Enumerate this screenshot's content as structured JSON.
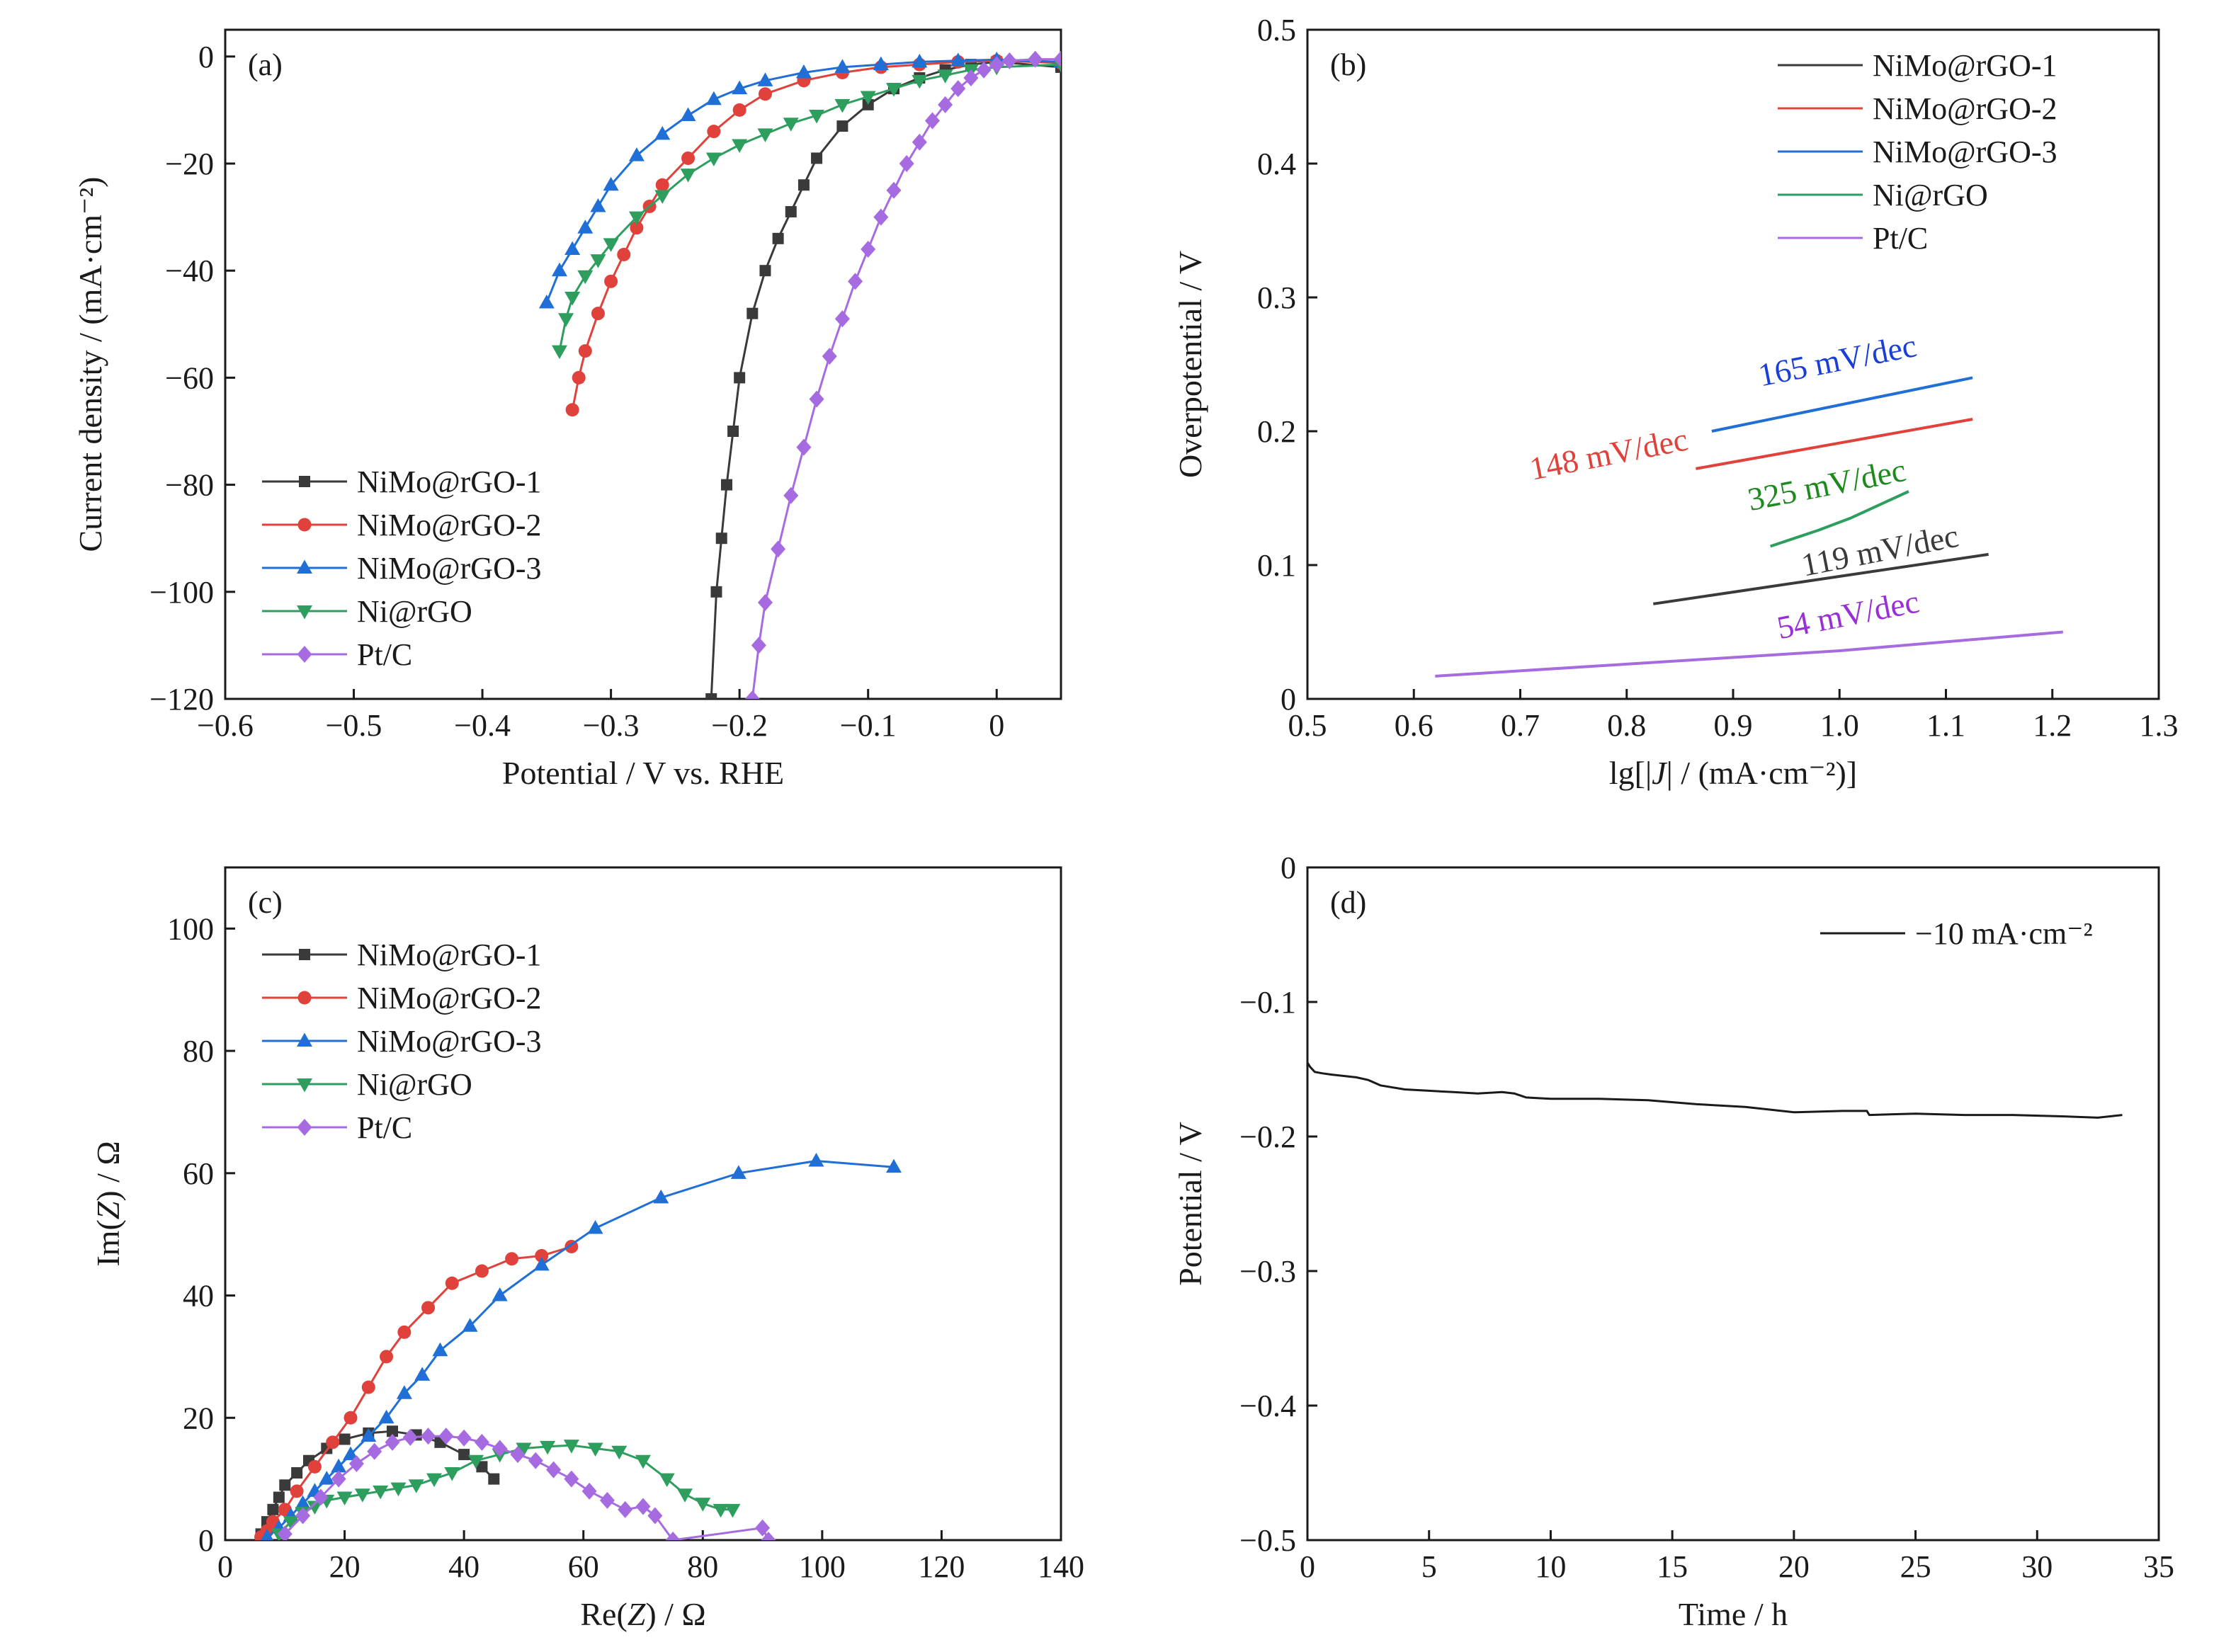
{
  "chart_data": [
    {
      "panel": "(a)",
      "type": "line",
      "xlabel": "Potential / V vs. RHE",
      "ylabel": "Current density / (mA·cm⁻²)",
      "xlim": [
        -0.6,
        0.05
      ],
      "ylim": [
        -120,
        5
      ],
      "xticks": [
        -0.6,
        -0.5,
        -0.4,
        -0.3,
        -0.2,
        -0.1,
        0
      ],
      "xtick_labels": [
        "−0.6",
        "−0.5",
        "−0.4",
        "−0.3",
        "−0.2",
        "−0.1",
        "0"
      ],
      "yticks": [
        0,
        -20,
        -40,
        -60,
        -80,
        -100,
        -120
      ],
      "ytick_labels": [
        "0",
        "−20",
        "−40",
        "−60",
        "−80",
        "−100",
        "−120"
      ],
      "legend_position": "bottom-left",
      "series": [
        {
          "name": "NiMo@rGO-1",
          "color": "#3a3a3a",
          "marker": "square",
          "x": [
            -0.222,
            -0.218,
            -0.214,
            -0.21,
            -0.205,
            -0.2,
            -0.19,
            -0.18,
            -0.17,
            -0.16,
            -0.15,
            -0.14,
            -0.12,
            -0.1,
            -0.08,
            -0.06,
            -0.04,
            -0.02,
            0.0,
            0.05
          ],
          "y": [
            -120,
            -100,
            -90,
            -80,
            -70,
            -60,
            -48,
            -40,
            -34,
            -29,
            -24,
            -19,
            -13,
            -9,
            -6,
            -4,
            -2.5,
            -1.5,
            -1,
            -2
          ]
        },
        {
          "name": "NiMo@rGO-2",
          "color": "#e0413a",
          "marker": "circle",
          "x": [
            -0.33,
            -0.325,
            -0.32,
            -0.31,
            -0.3,
            -0.29,
            -0.28,
            -0.27,
            -0.26,
            -0.24,
            -0.22,
            -0.2,
            -0.18,
            -0.15,
            -0.12,
            -0.09,
            -0.06,
            -0.03,
            0.0,
            0.05
          ],
          "y": [
            -66,
            -60,
            -55,
            -48,
            -42,
            -37,
            -32,
            -28,
            -24,
            -19,
            -14,
            -10,
            -7,
            -4.5,
            -3,
            -2,
            -1.5,
            -1,
            -0.8,
            -1.2
          ]
        },
        {
          "name": "NiMo@rGO-3",
          "color": "#1f6fd6",
          "marker": "triangle-up",
          "x": [
            -0.35,
            -0.34,
            -0.33,
            -0.32,
            -0.31,
            -0.3,
            -0.28,
            -0.26,
            -0.24,
            -0.22,
            -0.2,
            -0.18,
            -0.15,
            -0.12,
            -0.09,
            -0.06,
            -0.03,
            0.0,
            0.05
          ],
          "y": [
            -46,
            -40,
            -36,
            -32,
            -28,
            -24,
            -18.5,
            -14.5,
            -11,
            -8,
            -6,
            -4.5,
            -3,
            -2,
            -1.5,
            -1,
            -0.8,
            -0.6,
            -1
          ]
        },
        {
          "name": "Ni@rGO",
          "color": "#2e9e5f",
          "marker": "triangle-down",
          "x": [
            -0.34,
            -0.335,
            -0.33,
            -0.32,
            -0.31,
            -0.3,
            -0.28,
            -0.26,
            -0.24,
            -0.22,
            -0.2,
            -0.18,
            -0.16,
            -0.14,
            -0.12,
            -0.1,
            -0.08,
            -0.06,
            -0.04,
            -0.02,
            0.0,
            0.05
          ],
          "y": [
            -55,
            -49,
            -45,
            -41,
            -38,
            -35,
            -30,
            -26,
            -22,
            -19,
            -16.5,
            -14.5,
            -12.5,
            -11,
            -9,
            -7.5,
            -6,
            -4.5,
            -3.5,
            -2.5,
            -2,
            -1.5
          ]
        },
        {
          "name": "Pt/C",
          "color": "#a66be0",
          "marker": "diamond",
          "x": [
            -0.19,
            -0.185,
            -0.18,
            -0.17,
            -0.16,
            -0.15,
            -0.14,
            -0.13,
            -0.12,
            -0.11,
            -0.1,
            -0.09,
            -0.08,
            -0.07,
            -0.06,
            -0.05,
            -0.04,
            -0.03,
            -0.02,
            -0.01,
            0.0,
            0.01,
            0.03,
            0.05
          ],
          "y": [
            -120,
            -110,
            -102,
            -92,
            -82,
            -73,
            -64,
            -56,
            -49,
            -42,
            -36,
            -30,
            -25,
            -20,
            -16,
            -12,
            -9,
            -6,
            -4,
            -2.5,
            -1.5,
            -0.8,
            -0.5,
            -0.5
          ]
        }
      ]
    },
    {
      "panel": "(b)",
      "type": "line",
      "xlabel_parts": [
        "lg[|",
        "J",
        "| / (mA·cm⁻²)]"
      ],
      "ylabel": "Overpotential / V",
      "xlim": [
        0.5,
        1.3
      ],
      "ylim": [
        0,
        0.5
      ],
      "xticks": [
        0.5,
        0.6,
        0.7,
        0.8,
        0.9,
        1.0,
        1.1,
        1.2,
        1.3
      ],
      "xtick_labels": [
        "0.5",
        "0.6",
        "0.7",
        "0.8",
        "0.9",
        "1.0",
        "1.1",
        "1.2",
        "1.3"
      ],
      "yticks": [
        0,
        0.1,
        0.2,
        0.3,
        0.4,
        0.5
      ],
      "ytick_labels": [
        "0",
        "0.1",
        "0.2",
        "0.3",
        "0.4",
        "0.5"
      ],
      "legend_position": "top-right",
      "series": [
        {
          "name": "NiMo@rGO-1",
          "color": "#3a3a3a",
          "x": [
            0.825,
            1.14
          ],
          "y": [
            0.071,
            0.108
          ]
        },
        {
          "name": "NiMo@rGO-2",
          "color": "#e0413a",
          "x": [
            0.865,
            1.125
          ],
          "y": [
            0.172,
            0.209
          ]
        },
        {
          "name": "NiMo@rGO-3",
          "color": "#1f6fd6",
          "x": [
            0.88,
            1.125
          ],
          "y": [
            0.2,
            0.24
          ]
        },
        {
          "name": "Ni@rGO",
          "color": "#2e9e5f",
          "x": [
            0.935,
            0.98,
            1.01,
            1.065
          ],
          "y": [
            0.114,
            0.126,
            0.135,
            0.155
          ]
        },
        {
          "name": "Pt/C",
          "color": "#a66be0",
          "x": [
            0.62,
            0.8,
            1.0,
            1.21
          ],
          "y": [
            0.017,
            0.026,
            0.036,
            0.05
          ]
        }
      ],
      "annotations": [
        {
          "text": "165 mV/dec",
          "color": "#1a3fd6",
          "x": 1.0,
          "y": 0.245
        },
        {
          "text": "148 mV/dec",
          "color": "#e0413a",
          "x": 0.785,
          "y": 0.175
        },
        {
          "text": "325 mV/dec",
          "color": "#1e8a1e",
          "x": 0.99,
          "y": 0.152
        },
        {
          "text": "119 mV/dec",
          "color": "#3a3a3a",
          "x": 1.04,
          "y": 0.103
        },
        {
          "text": "54 mV/dec",
          "color": "#9a2fd6",
          "x": 1.01,
          "y": 0.055
        }
      ]
    },
    {
      "panel": "(c)",
      "type": "scatter",
      "xlabel_parts": [
        "Re(",
        "Z",
        ") / Ω"
      ],
      "ylabel_parts": [
        "Im(",
        "Z",
        ") / Ω"
      ],
      "xlim": [
        0,
        140
      ],
      "ylim": [
        0,
        110
      ],
      "xticks": [
        0,
        20,
        40,
        60,
        80,
        100,
        120,
        140
      ],
      "xtick_labels": [
        "0",
        "20",
        "40",
        "60",
        "80",
        "100",
        "120",
        "140"
      ],
      "yticks": [
        0,
        20,
        40,
        60,
        80,
        100
      ],
      "ytick_labels": [
        "0",
        "20",
        "40",
        "60",
        "80",
        "100"
      ],
      "legend_position": "top-left",
      "series": [
        {
          "name": "NiMo@rGO-1",
          "color": "#3a3a3a",
          "marker": "square",
          "x": [
            6,
            7,
            8,
            9,
            10,
            12,
            14,
            17,
            20,
            24,
            28,
            32,
            36,
            40,
            43,
            45
          ],
          "y": [
            1,
            3,
            5,
            7,
            9,
            11,
            13,
            15,
            16.5,
            17.5,
            17.8,
            17.2,
            16,
            14,
            12,
            10
          ]
        },
        {
          "name": "NiMo@rGO-2",
          "color": "#e0413a",
          "marker": "circle",
          "x": [
            6,
            7,
            8,
            10,
            12,
            15,
            18,
            21,
            24,
            27,
            30,
            34,
            38,
            43,
            48,
            53,
            58
          ],
          "y": [
            0.5,
            1.5,
            3,
            5,
            8,
            12,
            16,
            20,
            25,
            30,
            34,
            38,
            42,
            44,
            46,
            46.5,
            48
          ]
        },
        {
          "name": "NiMo@rGO-3",
          "color": "#1f6fd6",
          "marker": "triangle-up",
          "x": [
            7,
            9,
            11,
            13,
            15,
            17,
            19,
            21,
            24,
            27,
            30,
            33,
            36,
            41,
            46,
            53,
            62,
            73,
            86,
            99,
            112
          ],
          "y": [
            0.5,
            2,
            4,
            6,
            8,
            10,
            12,
            14,
            17,
            20,
            24,
            27,
            31,
            35,
            40,
            45,
            51,
            56,
            60,
            62,
            61
          ]
        },
        {
          "name": "Ni@rGO",
          "color": "#2e9e5f",
          "marker": "triangle-down",
          "x": [
            9,
            11,
            13,
            15,
            17,
            20,
            23,
            26,
            29,
            32,
            35,
            38,
            42,
            46,
            50,
            54,
            58,
            62,
            66,
            70,
            74,
            77,
            80,
            83,
            85
          ],
          "y": [
            1,
            3,
            4.5,
            5.5,
            6.5,
            7,
            7.5,
            8,
            8.5,
            9,
            10,
            11,
            13,
            14,
            15,
            15.3,
            15.5,
            15,
            14.5,
            13,
            10,
            7.5,
            6,
            5,
            5
          ]
        },
        {
          "name": "Pt/C",
          "color": "#a66be0",
          "marker": "diamond",
          "x": [
            10,
            13,
            16,
            19,
            22,
            25,
            28,
            31,
            34,
            37,
            40,
            43,
            46,
            49,
            52,
            55,
            58,
            61,
            64,
            67,
            70,
            72,
            75,
            90,
            91
          ],
          "y": [
            1,
            4,
            7,
            10,
            12.5,
            14.5,
            16,
            16.8,
            17,
            17,
            16.7,
            16,
            15,
            14,
            13,
            11.5,
            10,
            8,
            6.5,
            5,
            5.5,
            4,
            0,
            2,
            0
          ]
        }
      ]
    },
    {
      "panel": "(d)",
      "type": "line",
      "xlabel": "Time / h",
      "ylabel": "Potential / V",
      "xlim": [
        0,
        35
      ],
      "ylim": [
        -0.5,
        0
      ],
      "xticks": [
        0,
        5,
        10,
        15,
        20,
        25,
        30,
        35
      ],
      "xtick_labels": [
        "0",
        "5",
        "10",
        "15",
        "20",
        "25",
        "30",
        "35"
      ],
      "yticks": [
        0,
        -0.1,
        -0.2,
        -0.3,
        -0.4,
        -0.5
      ],
      "ytick_labels": [
        "0",
        "−0.1",
        "−0.2",
        "−0.3",
        "−0.4",
        "−0.5"
      ],
      "legend_position": "top-right",
      "series": [
        {
          "name": "−10 mA·cm⁻²",
          "color": "#1a1a1a",
          "x": [
            0,
            0.1,
            0.3,
            0.6,
            1,
            1.5,
            2,
            2.5,
            3,
            4,
            5,
            6,
            7,
            8,
            8.5,
            9,
            10,
            12,
            14,
            16,
            18,
            19.5,
            20,
            22,
            23,
            23.1,
            25,
            27,
            29,
            31,
            32.5,
            33.5
          ],
          "y": [
            -0.145,
            -0.148,
            -0.152,
            -0.153,
            -0.154,
            -0.155,
            -0.156,
            -0.158,
            -0.162,
            -0.165,
            -0.166,
            -0.167,
            -0.168,
            -0.167,
            -0.168,
            -0.171,
            -0.172,
            -0.172,
            -0.173,
            -0.176,
            -0.178,
            -0.181,
            -0.182,
            -0.181,
            -0.181,
            -0.184,
            -0.183,
            -0.184,
            -0.184,
            -0.185,
            -0.186,
            -0.184
          ]
        }
      ]
    }
  ]
}
